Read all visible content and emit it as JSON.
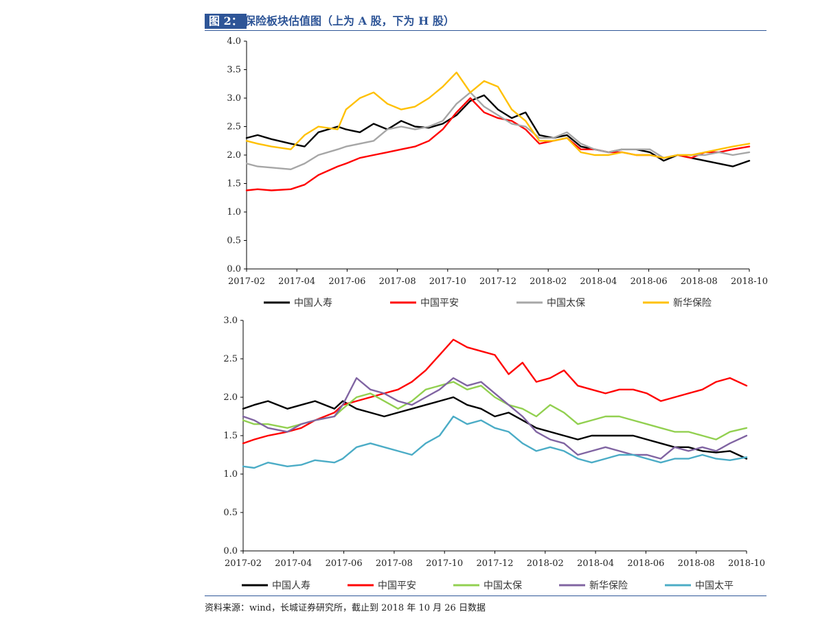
{
  "figure": {
    "tag": "图 2：",
    "title": "保险板块估值图（上为 A 股，下为 H 股）",
    "source": "资料来源：wind，长城证券研究所，截止到 2018 年 10 月 26 日数据",
    "accent_color": "#2e5597"
  },
  "chart_data": [
    {
      "type": "line",
      "title": "",
      "xlabel": "",
      "ylabel": "",
      "x_ticks": [
        "2017-02",
        "2017-04",
        "2017-06",
        "2017-08",
        "2017-10",
        "2017-12",
        "2018-02",
        "2018-04",
        "2018-06",
        "2018-08",
        "2018-10"
      ],
      "x_range": [
        2017.04,
        2018.86
      ],
      "y_ticks": [
        "0.0",
        "0.5",
        "1.0",
        "1.5",
        "2.0",
        "2.5",
        "3.0",
        "3.5",
        "4.0"
      ],
      "ylim": [
        0,
        4
      ],
      "grid": false,
      "legend_position": "bottom",
      "series": [
        {
          "name": "中国人寿",
          "color": "#000000",
          "x": [
            2017.04,
            2017.08,
            2017.13,
            2017.2,
            2017.25,
            2017.3,
            2017.37,
            2017.4,
            2017.45,
            2017.5,
            2017.55,
            2017.6,
            2017.65,
            2017.7,
            2017.75,
            2017.8,
            2017.85,
            2017.9,
            2017.95,
            2018.0,
            2018.05,
            2018.1,
            2018.15,
            2018.2,
            2018.25,
            2018.3,
            2018.35,
            2018.4,
            2018.45,
            2018.5,
            2018.55,
            2018.6,
            2018.65,
            2018.7,
            2018.75,
            2018.8,
            2018.86
          ],
          "y": [
            2.3,
            2.35,
            2.28,
            2.2,
            2.15,
            2.4,
            2.5,
            2.45,
            2.4,
            2.55,
            2.45,
            2.6,
            2.5,
            2.48,
            2.55,
            2.7,
            2.95,
            3.05,
            2.8,
            2.65,
            2.75,
            2.35,
            2.3,
            2.35,
            2.15,
            2.1,
            2.05,
            2.1,
            2.1,
            2.05,
            1.9,
            2.0,
            1.95,
            1.9,
            1.85,
            1.8,
            1.9
          ]
        },
        {
          "name": "中国平安",
          "color": "#ff0000",
          "x": [
            2017.04,
            2017.08,
            2017.13,
            2017.2,
            2017.25,
            2017.3,
            2017.37,
            2017.4,
            2017.45,
            2017.5,
            2017.55,
            2017.6,
            2017.65,
            2017.7,
            2017.75,
            2017.8,
            2017.85,
            2017.9,
            2017.95,
            2018.0,
            2018.05,
            2018.1,
            2018.15,
            2018.2,
            2018.25,
            2018.3,
            2018.35,
            2018.4,
            2018.45,
            2018.5,
            2018.55,
            2018.6,
            2018.65,
            2018.7,
            2018.75,
            2018.8,
            2018.86
          ],
          "y": [
            1.38,
            1.4,
            1.38,
            1.4,
            1.48,
            1.65,
            1.8,
            1.85,
            1.95,
            2.0,
            2.05,
            2.1,
            2.15,
            2.25,
            2.45,
            2.75,
            3.0,
            2.75,
            2.65,
            2.6,
            2.45,
            2.2,
            2.25,
            2.3,
            2.1,
            2.1,
            2.05,
            2.05,
            2.0,
            2.0,
            1.95,
            2.0,
            1.95,
            2.05,
            2.05,
            2.1,
            2.15
          ]
        },
        {
          "name": "中国太保",
          "color": "#a6a6a6",
          "x": [
            2017.04,
            2017.08,
            2017.13,
            2017.2,
            2017.25,
            2017.3,
            2017.37,
            2017.4,
            2017.45,
            2017.5,
            2017.55,
            2017.6,
            2017.65,
            2017.7,
            2017.75,
            2017.8,
            2017.85,
            2017.9,
            2017.95,
            2018.0,
            2018.05,
            2018.1,
            2018.15,
            2018.2,
            2018.25,
            2018.3,
            2018.35,
            2018.4,
            2018.45,
            2018.5,
            2018.55,
            2018.6,
            2018.65,
            2018.7,
            2018.75,
            2018.8,
            2018.86
          ],
          "y": [
            1.85,
            1.8,
            1.78,
            1.75,
            1.85,
            2.0,
            2.1,
            2.15,
            2.2,
            2.25,
            2.45,
            2.5,
            2.45,
            2.5,
            2.6,
            2.9,
            3.1,
            2.85,
            2.7,
            2.55,
            2.5,
            2.3,
            2.3,
            2.4,
            2.2,
            2.1,
            2.05,
            2.1,
            2.1,
            2.1,
            1.95,
            2.0,
            2.0,
            2.0,
            2.05,
            2.0,
            2.05
          ]
        },
        {
          "name": "新华保险",
          "color": "#ffc000",
          "x": [
            2017.04,
            2017.08,
            2017.13,
            2017.2,
            2017.25,
            2017.3,
            2017.37,
            2017.4,
            2017.45,
            2017.5,
            2017.55,
            2017.6,
            2017.65,
            2017.7,
            2017.75,
            2017.8,
            2017.85,
            2017.9,
            2017.95,
            2018.0,
            2018.05,
            2018.1,
            2018.15,
            2018.2,
            2018.25,
            2018.3,
            2018.35,
            2018.4,
            2018.45,
            2018.5,
            2018.55,
            2018.6,
            2018.65,
            2018.7,
            2018.75,
            2018.8,
            2018.86
          ],
          "y": [
            2.25,
            2.2,
            2.15,
            2.1,
            2.35,
            2.5,
            2.45,
            2.8,
            3.0,
            3.1,
            2.9,
            2.8,
            2.85,
            3.0,
            3.2,
            3.45,
            3.1,
            3.3,
            3.2,
            2.8,
            2.6,
            2.25,
            2.25,
            2.3,
            2.05,
            2.0,
            2.0,
            2.05,
            2.0,
            2.0,
            1.95,
            2.0,
            2.0,
            2.05,
            2.1,
            2.15,
            2.2
          ]
        }
      ]
    },
    {
      "type": "line",
      "title": "",
      "xlabel": "",
      "ylabel": "",
      "x_ticks": [
        "2017-02",
        "2017-04",
        "2017-06",
        "2017-08",
        "2017-10",
        "2017-12",
        "2018-02",
        "2018-04",
        "2018-06",
        "2018-08",
        "2018-10"
      ],
      "x_range": [
        2017.04,
        2018.86
      ],
      "y_ticks": [
        "0.0",
        "0.5",
        "1.0",
        "1.5",
        "2.0",
        "2.5",
        "3.0"
      ],
      "ylim": [
        0,
        3
      ],
      "grid": false,
      "legend_position": "bottom",
      "series": [
        {
          "name": "中国人寿",
          "color": "#000000",
          "x": [
            2017.04,
            2017.08,
            2017.13,
            2017.2,
            2017.25,
            2017.3,
            2017.37,
            2017.4,
            2017.45,
            2017.5,
            2017.55,
            2017.6,
            2017.65,
            2017.7,
            2017.75,
            2017.8,
            2017.85,
            2017.9,
            2017.95,
            2018.0,
            2018.05,
            2018.1,
            2018.15,
            2018.2,
            2018.25,
            2018.3,
            2018.35,
            2018.4,
            2018.45,
            2018.5,
            2018.55,
            2018.6,
            2018.65,
            2018.7,
            2018.75,
            2018.8,
            2018.86
          ],
          "y": [
            1.85,
            1.9,
            1.95,
            1.85,
            1.9,
            1.95,
            1.85,
            1.95,
            1.85,
            1.8,
            1.75,
            1.8,
            1.85,
            1.9,
            1.95,
            2.0,
            1.9,
            1.85,
            1.75,
            1.8,
            1.7,
            1.6,
            1.55,
            1.5,
            1.45,
            1.5,
            1.5,
            1.5,
            1.5,
            1.45,
            1.4,
            1.35,
            1.35,
            1.3,
            1.28,
            1.3,
            1.2
          ]
        },
        {
          "name": "中国平安",
          "color": "#ff0000",
          "x": [
            2017.04,
            2017.08,
            2017.13,
            2017.2,
            2017.25,
            2017.3,
            2017.37,
            2017.4,
            2017.45,
            2017.5,
            2017.55,
            2017.6,
            2017.65,
            2017.7,
            2017.75,
            2017.8,
            2017.85,
            2017.9,
            2017.95,
            2018.0,
            2018.05,
            2018.1,
            2018.15,
            2018.2,
            2018.25,
            2018.3,
            2018.35,
            2018.4,
            2018.45,
            2018.5,
            2018.55,
            2018.6,
            2018.65,
            2018.7,
            2018.75,
            2018.8,
            2018.86
          ],
          "y": [
            1.4,
            1.45,
            1.5,
            1.55,
            1.6,
            1.7,
            1.8,
            1.9,
            1.95,
            2.0,
            2.05,
            2.1,
            2.2,
            2.35,
            2.55,
            2.75,
            2.65,
            2.6,
            2.55,
            2.3,
            2.45,
            2.2,
            2.25,
            2.35,
            2.15,
            2.1,
            2.05,
            2.1,
            2.1,
            2.05,
            1.95,
            2.0,
            2.05,
            2.1,
            2.2,
            2.25,
            2.15
          ]
        },
        {
          "name": "中国太保",
          "color": "#92d050",
          "x": [
            2017.04,
            2017.08,
            2017.13,
            2017.2,
            2017.25,
            2017.3,
            2017.37,
            2017.4,
            2017.45,
            2017.5,
            2017.55,
            2017.6,
            2017.65,
            2017.7,
            2017.75,
            2017.8,
            2017.85,
            2017.9,
            2017.95,
            2018.0,
            2018.05,
            2018.1,
            2018.15,
            2018.2,
            2018.25,
            2018.3,
            2018.35,
            2018.4,
            2018.45,
            2018.5,
            2018.55,
            2018.6,
            2018.65,
            2018.7,
            2018.75,
            2018.8,
            2018.86
          ],
          "y": [
            1.7,
            1.65,
            1.65,
            1.6,
            1.65,
            1.7,
            1.75,
            1.85,
            2.0,
            2.05,
            1.95,
            1.85,
            1.95,
            2.1,
            2.15,
            2.2,
            2.1,
            2.15,
            2.0,
            1.9,
            1.85,
            1.75,
            1.9,
            1.8,
            1.65,
            1.7,
            1.75,
            1.75,
            1.7,
            1.65,
            1.6,
            1.55,
            1.55,
            1.5,
            1.45,
            1.55,
            1.6
          ]
        },
        {
          "name": "新华保险",
          "color": "#8064a2",
          "x": [
            2017.04,
            2017.08,
            2017.13,
            2017.2,
            2017.25,
            2017.3,
            2017.37,
            2017.4,
            2017.45,
            2017.5,
            2017.55,
            2017.6,
            2017.65,
            2017.7,
            2017.75,
            2017.8,
            2017.85,
            2017.9,
            2017.95,
            2018.0,
            2018.05,
            2018.1,
            2018.15,
            2018.2,
            2018.25,
            2018.3,
            2018.35,
            2018.4,
            2018.45,
            2018.5,
            2018.55,
            2018.6,
            2018.65,
            2018.7,
            2018.75,
            2018.8,
            2018.86
          ],
          "y": [
            1.75,
            1.7,
            1.6,
            1.55,
            1.65,
            1.7,
            1.75,
            1.9,
            2.25,
            2.1,
            2.05,
            1.95,
            1.9,
            2.0,
            2.1,
            2.25,
            2.15,
            2.2,
            2.05,
            1.9,
            1.75,
            1.55,
            1.45,
            1.4,
            1.25,
            1.3,
            1.35,
            1.3,
            1.25,
            1.25,
            1.2,
            1.35,
            1.3,
            1.35,
            1.3,
            1.4,
            1.5
          ]
        },
        {
          "name": "中国太平",
          "color": "#4bacc6",
          "x": [
            2017.04,
            2017.08,
            2017.13,
            2017.2,
            2017.25,
            2017.3,
            2017.37,
            2017.4,
            2017.45,
            2017.5,
            2017.55,
            2017.6,
            2017.65,
            2017.7,
            2017.75,
            2017.8,
            2017.85,
            2017.9,
            2017.95,
            2018.0,
            2018.05,
            2018.1,
            2018.15,
            2018.2,
            2018.25,
            2018.3,
            2018.35,
            2018.4,
            2018.45,
            2018.5,
            2018.55,
            2018.6,
            2018.65,
            2018.7,
            2018.75,
            2018.8,
            2018.86
          ],
          "y": [
            1.1,
            1.08,
            1.15,
            1.1,
            1.12,
            1.18,
            1.15,
            1.2,
            1.35,
            1.4,
            1.35,
            1.3,
            1.25,
            1.4,
            1.5,
            1.75,
            1.65,
            1.7,
            1.6,
            1.55,
            1.4,
            1.3,
            1.35,
            1.3,
            1.2,
            1.15,
            1.2,
            1.25,
            1.25,
            1.2,
            1.15,
            1.2,
            1.2,
            1.25,
            1.2,
            1.18,
            1.22
          ]
        }
      ]
    }
  ]
}
